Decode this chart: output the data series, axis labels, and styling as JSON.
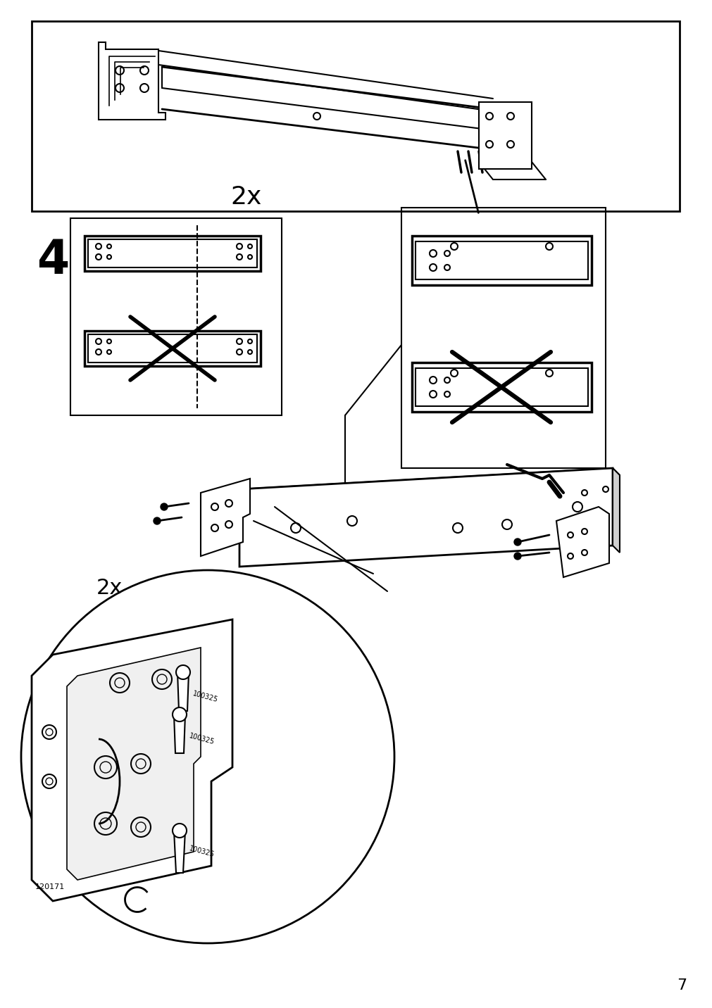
{
  "page_number": "7",
  "bg_color": "#ffffff",
  "line_color": "#000000",
  "step_number": "4",
  "qty_label_1": "2x",
  "qty_label_2": "2x",
  "part_code_1": "120171",
  "part_code_2": "100325",
  "figsize": [
    10.12,
    14.32
  ],
  "dpi": 100
}
